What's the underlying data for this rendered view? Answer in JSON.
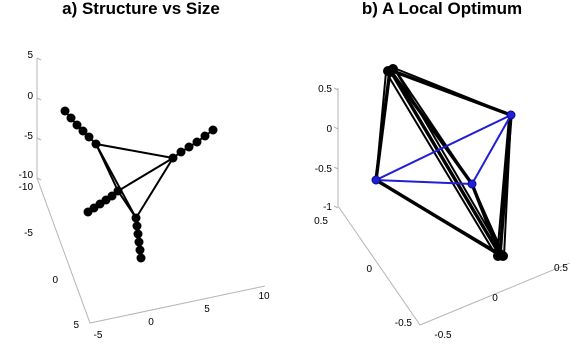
{
  "panels": [
    {
      "title": "a) Structure vs Size",
      "z_ticks": [
        "5",
        "0",
        "-5",
        "-10"
      ],
      "y_ticks": [
        "-10",
        "-5",
        "0",
        "5"
      ],
      "x_ticks": [
        "-5",
        "0",
        "5",
        "10"
      ]
    },
    {
      "title": "b) A Local Optimum",
      "z_ticks": [
        "0.5",
        "0",
        "-0.5",
        "-1"
      ],
      "y_ticks": [
        "0.5",
        "0",
        "-0.5"
      ],
      "x_ticks": [
        "-0.5",
        "0",
        "0.5"
      ]
    }
  ],
  "colors": {
    "node": "#000000",
    "highlight": "#1f1fd6",
    "axis": "#b5b5b5"
  }
}
